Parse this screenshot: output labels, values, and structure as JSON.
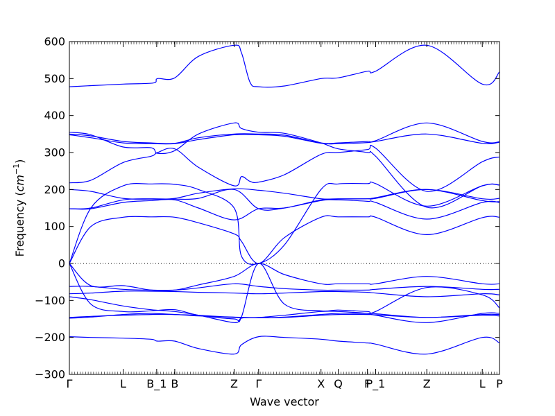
{
  "chart_data": {
    "type": "line",
    "title": "",
    "xlabel": "Wave vector",
    "ylabel": "Frequency ($cm^{-1}$)",
    "ylabel_text": "Frequency (",
    "ylabel_unit_base": "cm",
    "ylabel_unit_exp": "−1",
    "ylabel_close": ")",
    "ylim": [
      -300,
      600
    ],
    "yticks": [
      -300,
      -200,
      -100,
      0,
      100,
      200,
      300,
      400,
      500,
      600
    ],
    "xlim": [
      0,
      1
    ],
    "xticks": [
      {
        "label": "Γ",
        "x": 0.0
      },
      {
        "label": "L",
        "x": 0.125
      },
      {
        "label": "B_1",
        "x": 0.203
      },
      {
        "label": "B",
        "x": 0.245
      },
      {
        "label": "Z",
        "x": 0.383
      },
      {
        "label": "Γ",
        "x": 0.44
      },
      {
        "label": "X",
        "x": 0.585
      },
      {
        "label": "Q",
        "x": 0.625
      },
      {
        "label": "F",
        "x": 0.693
      },
      {
        "label": "P_1",
        "x": 0.712
      },
      {
        "label": "Z",
        "x": 0.831
      },
      {
        "label": "L",
        "x": 0.96
      },
      {
        "label": "P",
        "x": 1.0
      }
    ],
    "zero_line": true,
    "grid": false,
    "line_color": "#0000ff",
    "series": [
      {
        "x": [
          0,
          0.125,
          0.195,
          0.205,
          0.245,
          0.3,
          0.383,
          0.4,
          0.42,
          0.44,
          0.5,
          0.585,
          0.625,
          0.693,
          0.712,
          0.831,
          0.96,
          1.0
        ],
        "y": [
          478,
          485,
          488,
          500,
          502,
          560,
          590,
          570,
          490,
          478,
          480,
          500,
          502,
          520,
          520,
          590,
          485,
          518
        ]
      },
      {
        "x": [
          0,
          0.05,
          0.125,
          0.19,
          0.205,
          0.245,
          0.3,
          0.383,
          0.4,
          0.44,
          0.5,
          0.585,
          0.625,
          0.693,
          0.712,
          0.831,
          0.96,
          1.0
        ],
        "y": [
          355,
          348,
          315,
          313,
          298,
          305,
          350,
          380,
          365,
          355,
          352,
          326,
          310,
          300,
          290,
          152,
          210,
          212
        ]
      },
      {
        "x": [
          0,
          0.05,
          0.125,
          0.19,
          0.245,
          0.3,
          0.383,
          0.44,
          0.5,
          0.585,
          0.625,
          0.693,
          0.712,
          0.831,
          0.96,
          1.0
        ],
        "y": [
          350,
          345,
          330,
          326,
          325,
          340,
          350,
          350,
          347,
          326,
          326,
          330,
          332,
          380,
          330,
          329
        ]
      },
      {
        "x": [
          0,
          0.05,
          0.125,
          0.19,
          0.245,
          0.3,
          0.383,
          0.44,
          0.5,
          0.585,
          0.625,
          0.693,
          0.712,
          0.831,
          0.96,
          1.0
        ],
        "y": [
          348,
          340,
          326,
          324,
          324,
          335,
          348,
          348,
          344,
          325,
          324,
          327,
          330,
          350,
          325,
          328
        ]
      },
      {
        "x": [
          0,
          0.05,
          0.125,
          0.19,
          0.205,
          0.245,
          0.3,
          0.383,
          0.4,
          0.42,
          0.44,
          0.5,
          0.585,
          0.625,
          0.693,
          0.712,
          0.831,
          0.96,
          1.0
        ],
        "y": [
          218,
          225,
          273,
          290,
          300,
          310,
          260,
          210,
          235,
          222,
          220,
          240,
          295,
          300,
          308,
          312,
          195,
          275,
          288
        ]
      },
      {
        "x": [
          0,
          0.05,
          0.125,
          0.19,
          0.245,
          0.3,
          0.383,
          0.4,
          0.44,
          0.5,
          0.585,
          0.625,
          0.693,
          0.712,
          0.831,
          0.96,
          1.0
        ],
        "y": [
          0,
          150,
          210,
          215,
          214,
          200,
          150,
          20,
          0,
          50,
          200,
          215,
          216,
          216,
          155,
          210,
          212
        ]
      },
      {
        "x": [
          0,
          0.05,
          0.125,
          0.19,
          0.245,
          0.3,
          0.383,
          0.44,
          0.5,
          0.585,
          0.625,
          0.693,
          0.712,
          0.831,
          0.96,
          1.0
        ],
        "y": [
          200,
          195,
          176,
          174,
          176,
          190,
          202,
          198,
          190,
          175,
          175,
          175,
          176,
          200,
          175,
          176
        ]
      },
      {
        "x": [
          0,
          0.05,
          0.125,
          0.19,
          0.245,
          0.3,
          0.383,
          0.44,
          0.5,
          0.585,
          0.625,
          0.693,
          0.712,
          0.831,
          0.96,
          1.0
        ],
        "y": [
          148,
          150,
          172,
          175,
          174,
          176,
          200,
          148,
          150,
          172,
          174,
          175,
          178,
          200,
          170,
          167
        ]
      },
      {
        "x": [
          0,
          0.05,
          0.125,
          0.19,
          0.245,
          0.3,
          0.383,
          0.44,
          0.5,
          0.585,
          0.625,
          0.693,
          0.712,
          0.831,
          0.96,
          1.0
        ],
        "y": [
          148,
          148,
          165,
          170,
          172,
          150,
          118,
          148,
          150,
          170,
          172,
          168,
          165,
          120,
          165,
          165
        ]
      },
      {
        "x": [
          0,
          0.05,
          0.125,
          0.19,
          0.245,
          0.3,
          0.383,
          0.4,
          0.44,
          0.5,
          0.585,
          0.625,
          0.693,
          0.712,
          0.831,
          0.96,
          1.0
        ],
        "y": [
          0,
          100,
          125,
          126,
          125,
          110,
          80,
          60,
          0,
          70,
          125,
          126,
          126,
          125,
          78,
          124,
          125
        ]
      },
      {
        "x": [
          0,
          0.05,
          0.125,
          0.19,
          0.245,
          0.3,
          0.383,
          0.44,
          0.5,
          0.585,
          0.625,
          0.693,
          0.712,
          0.831,
          0.96,
          1.0
        ],
        "y": [
          0,
          -60,
          -60,
          -72,
          -72,
          -58,
          -35,
          0,
          -30,
          -55,
          -55,
          -55,
          -55,
          -35,
          -55,
          -55
        ]
      },
      {
        "x": [
          0,
          0.05,
          0.125,
          0.19,
          0.245,
          0.3,
          0.383,
          0.44,
          0.5,
          0.585,
          0.625,
          0.693,
          0.712,
          0.831,
          0.96,
          1.0
        ],
        "y": [
          -62,
          -62,
          -70,
          -72,
          -72,
          -66,
          -55,
          -62,
          -68,
          -72,
          -72,
          -72,
          -70,
          -62,
          -70,
          -70
        ]
      },
      {
        "x": [
          0,
          0.05,
          0.125,
          0.19,
          0.245,
          0.3,
          0.383,
          0.44,
          0.5,
          0.585,
          0.625,
          0.693,
          0.712,
          0.831,
          0.96,
          1.0
        ],
        "y": [
          -82,
          -80,
          -75,
          -75,
          -76,
          -78,
          -80,
          -82,
          -80,
          -76,
          -76,
          -78,
          -80,
          -90,
          -82,
          -85
        ]
      },
      {
        "x": [
          0,
          0.05,
          0.125,
          0.19,
          0.245,
          0.3,
          0.383,
          0.4,
          0.44,
          0.5,
          0.585,
          0.625,
          0.693,
          0.712,
          0.831,
          0.96,
          1.0
        ],
        "y": [
          0,
          -110,
          -130,
          -128,
          -125,
          -140,
          -150,
          -145,
          0,
          -110,
          -128,
          -126,
          -130,
          -130,
          -65,
          -85,
          -120
        ]
      },
      {
        "x": [
          0,
          0.05,
          0.125,
          0.19,
          0.245,
          0.3,
          0.383,
          0.4,
          0.44,
          0.5,
          0.585,
          0.625,
          0.693,
          0.712,
          0.831,
          0.96,
          1.0
        ],
        "y": [
          -90,
          -98,
          -115,
          -125,
          -130,
          -140,
          -160,
          -148,
          -146,
          -140,
          -130,
          -130,
          -135,
          -140,
          -160,
          -135,
          -135
        ]
      },
      {
        "x": [
          0,
          0.05,
          0.125,
          0.19,
          0.245,
          0.3,
          0.383,
          0.44,
          0.5,
          0.585,
          0.625,
          0.693,
          0.712,
          0.831,
          0.96,
          1.0
        ],
        "y": [
          -148,
          -145,
          -138,
          -135,
          -138,
          -140,
          -146,
          -147,
          -145,
          -138,
          -135,
          -135,
          -136,
          -146,
          -138,
          -138
        ]
      },
      {
        "x": [
          0,
          0.05,
          0.125,
          0.19,
          0.245,
          0.3,
          0.383,
          0.44,
          0.5,
          0.585,
          0.625,
          0.693,
          0.712,
          0.831,
          0.96,
          1.0
        ],
        "y": [
          -146,
          -143,
          -140,
          -138,
          -138,
          -142,
          -145,
          -147,
          -146,
          -140,
          -138,
          -138,
          -139,
          -146,
          -140,
          -142
        ]
      },
      {
        "x": [
          0,
          0.05,
          0.125,
          0.19,
          0.205,
          0.245,
          0.3,
          0.383,
          0.4,
          0.44,
          0.5,
          0.585,
          0.625,
          0.693,
          0.712,
          0.831,
          0.96,
          1.0
        ],
        "y": [
          -198,
          -200,
          -202,
          -205,
          -210,
          -210,
          -230,
          -245,
          -220,
          -198,
          -200,
          -205,
          -210,
          -215,
          -218,
          -245,
          -200,
          -215
        ]
      }
    ]
  }
}
